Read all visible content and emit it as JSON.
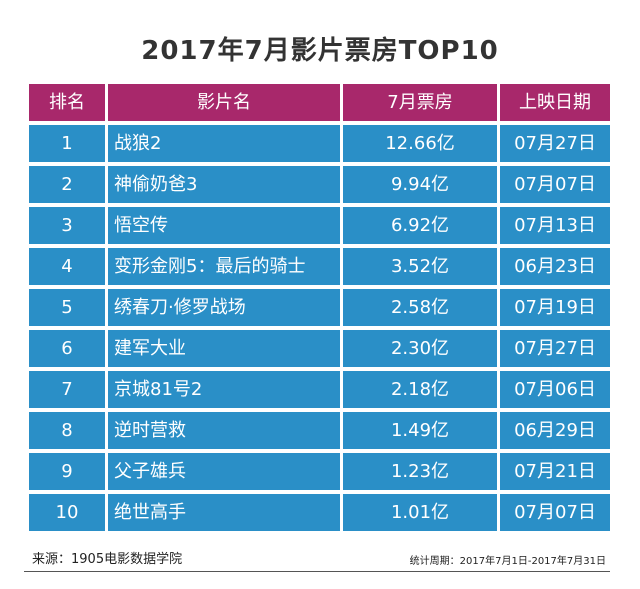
{
  "chart_data": {
    "type": "table",
    "title": "2017年7月影片票房TOP10",
    "columns": [
      "排名",
      "影片名",
      "7月票房",
      "上映日期"
    ],
    "rows": [
      {
        "rank": "1",
        "name": "战狼2",
        "box": "12.66亿",
        "date": "07月27日"
      },
      {
        "rank": "2",
        "name": "神偷奶爸3",
        "box": "9.94亿",
        "date": "07月07日"
      },
      {
        "rank": "3",
        "name": "悟空传",
        "box": "6.92亿",
        "date": "07月13日"
      },
      {
        "rank": "4",
        "name": "变形金刚5：最后的骑士",
        "box": "3.52亿",
        "date": "06月23日"
      },
      {
        "rank": "5",
        "name": "绣春刀·修罗战场",
        "box": "2.58亿",
        "date": "07月19日"
      },
      {
        "rank": "6",
        "name": "建军大业",
        "box": "2.30亿",
        "date": "07月27日"
      },
      {
        "rank": "7",
        "name": "京城81号2",
        "box": "2.18亿",
        "date": "07月06日"
      },
      {
        "rank": "8",
        "name": "逆时营救",
        "box": "1.49亿",
        "date": "06月29日"
      },
      {
        "rank": "9",
        "name": "父子雄兵",
        "box": "1.23亿",
        "date": "07月21日"
      },
      {
        "rank": "10",
        "name": "绝世高手",
        "box": "1.01亿",
        "date": "07月07日"
      }
    ]
  },
  "footer": {
    "source": "来源：1905电影数据学院",
    "period": "统计周期：2017年7月1日-2017年7月31日"
  },
  "colors": {
    "header": "#a8286b",
    "row": "#2a8fc7"
  }
}
